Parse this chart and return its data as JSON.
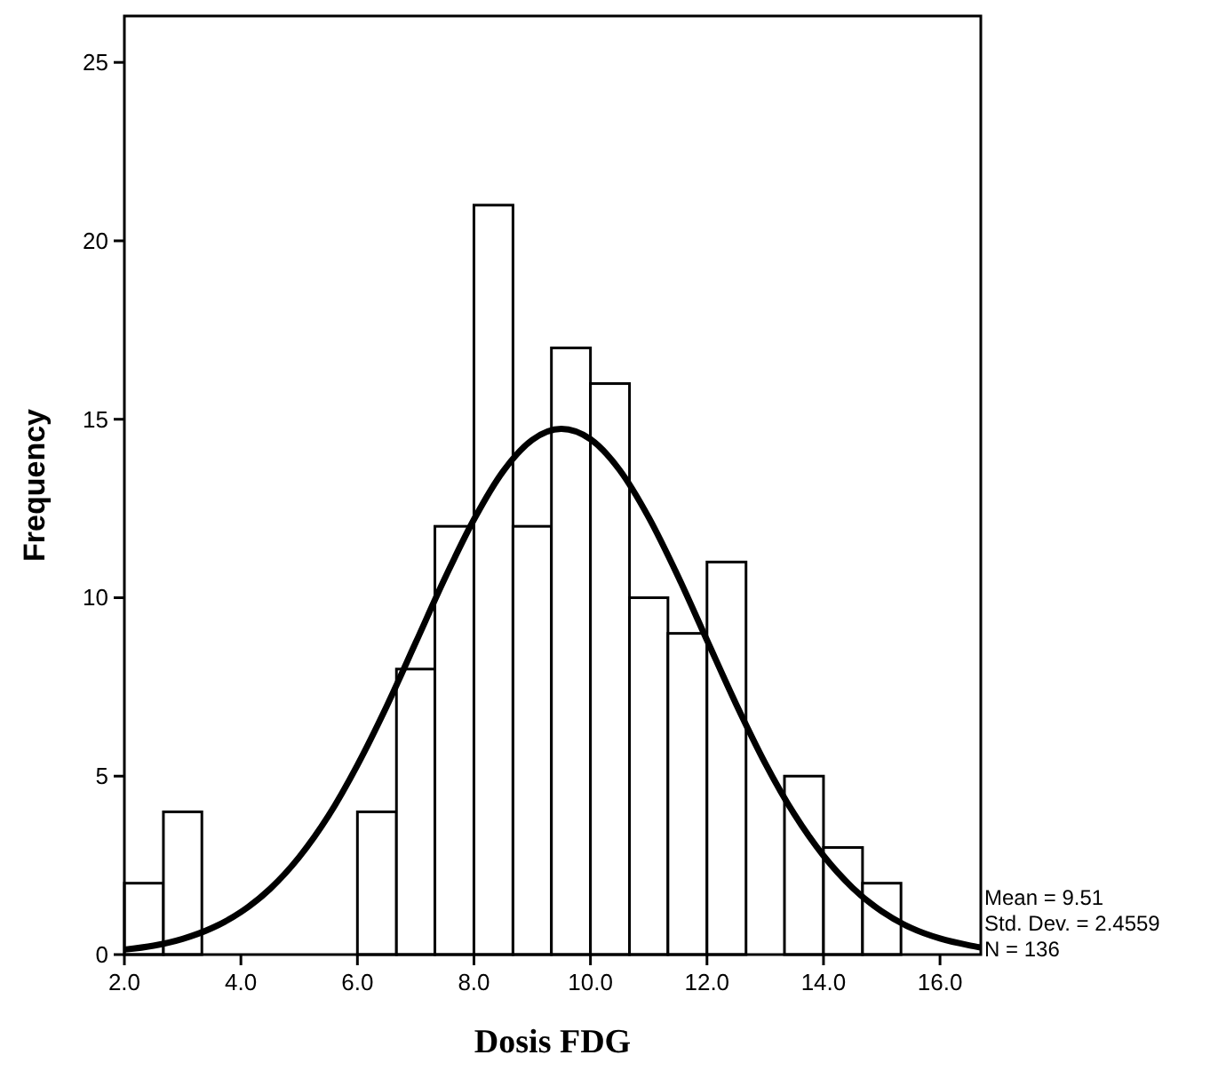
{
  "chart_data": {
    "type": "histogram",
    "xlabel": "Dosis FDG",
    "ylabel": "Frequency",
    "series": [
      {
        "color": "#ffffff",
        "bins": [
          2.0,
          2.67,
          3.33
        ],
        "values": [
          2,
          4
        ]
      },
      {
        "color": "#ffffff",
        "bins": [
          6.0,
          6.67,
          7.33,
          8.0,
          8.67,
          9.33,
          10.0,
          10.67,
          11.33,
          12.0,
          12.67,
          13.33,
          14.0,
          14.67,
          15.33
        ],
        "values": [
          4,
          8,
          12,
          21,
          12,
          17,
          16,
          10,
          9,
          11,
          0,
          5,
          3,
          2
        ]
      },
      {
        "type": "line",
        "color": "#000000",
        "x": [
          2,
          2.5,
          3,
          3.5,
          4,
          4.5,
          5,
          5.5,
          6,
          6.5,
          7,
          7.5,
          8,
          8.5,
          9,
          9.5,
          10,
          10.5,
          11,
          11.5,
          12,
          12.5,
          13,
          13.5,
          14,
          14.5,
          15,
          15.5,
          16,
          16.5,
          16.7
        ],
        "values": [
          0.14,
          0.25,
          0.44,
          0.74,
          1.19,
          1.84,
          2.73,
          3.88,
          5.31,
          6.95,
          8.74,
          10.54,
          12.19,
          13.54,
          14.42,
          14.73,
          14.44,
          13.58,
          12.25,
          10.61,
          8.81,
          7.02,
          5.36,
          3.93,
          2.77,
          1.87,
          1.21,
          0.75,
          0.45,
          0.26,
          0.2
        ]
      }
    ],
    "xlim": [
      2.0,
      16.7
    ],
    "xticks": [
      {
        "value": 2,
        "label": "2.0"
      },
      {
        "value": 4,
        "label": "4.0"
      },
      {
        "value": 6,
        "label": "6.0"
      },
      {
        "value": 8,
        "label": "8.0"
      },
      {
        "value": 10,
        "label": "10.0"
      },
      {
        "value": 12,
        "label": "12.0"
      },
      {
        "value": 14,
        "label": "14.0"
      },
      {
        "value": 16,
        "label": "16.0"
      }
    ],
    "ylim": [
      0,
      26.3
    ],
    "yticks": [
      0,
      5,
      10,
      15,
      20,
      25
    ],
    "grid": false,
    "line_style": "solid",
    "marker": "none",
    "annotations": [
      "Mean = 9.51",
      "Std. Dev. = 2.4559",
      "N = 136"
    ]
  }
}
